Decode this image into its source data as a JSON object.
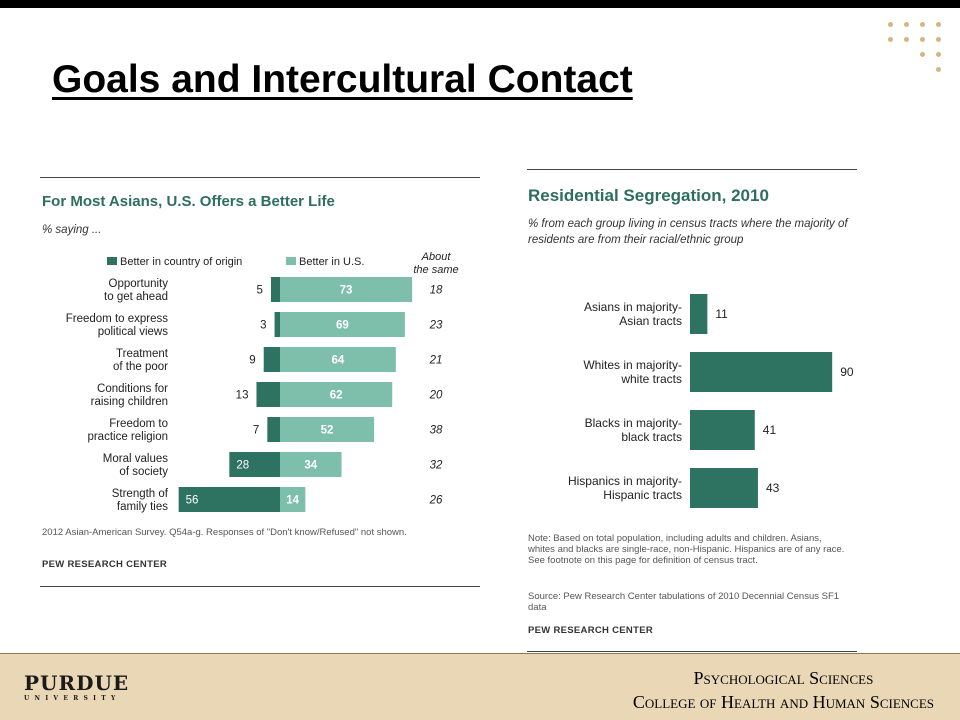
{
  "slide": {
    "title": "Goals and Intercultural Contact",
    "footer_line1": "Psychological Sciences",
    "footer_line2": "College of Health and Human Sciences",
    "logo_name": "PURDUE",
    "logo_sub": "UNIVERSITY"
  },
  "colors": {
    "dark_green": "#2e7262",
    "light_green": "#7dbfab",
    "title_green": "#2e6e5e",
    "footer_bg": "#ead7b5",
    "dots": "#d4b483"
  },
  "chart_data": [
    {
      "type": "bar",
      "title": "For Most Asians, U.S. Offers a Better Life",
      "subtitle": "% saying ...",
      "categories": [
        "Opportunity to get ahead",
        "Freedom to express political views",
        "Treatment of the poor",
        "Conditions for raising children",
        "Freedom to practice religion",
        "Moral values of society",
        "Strength of family ties"
      ],
      "series": [
        {
          "name": "Better in country of origin",
          "values": [
            5,
            3,
            9,
            13,
            7,
            28,
            56
          ]
        },
        {
          "name": "Better in U.S.",
          "values": [
            73,
            69,
            64,
            62,
            52,
            34,
            14
          ]
        }
      ],
      "about_the_same": {
        "name": "About the same",
        "values": [
          18,
          23,
          21,
          20,
          38,
          32,
          26
        ]
      },
      "note": "2012 Asian-American Survey. Q54a-g. Responses of \"Don't know/Refused\" not shown.",
      "source": "PEW RESEARCH CENTER"
    },
    {
      "type": "bar",
      "title": "Residential Segregation, 2010",
      "subtitle": "% from each group living in census tracts where the majority of residents are from their racial/ethnic group",
      "categories": [
        "Asians in majority-Asian tracts",
        "Whites in majority-white tracts",
        "Blacks in majority-black tracts",
        "Hispanics in majority-Hispanic tracts"
      ],
      "values": [
        11,
        90,
        41,
        43
      ],
      "note": "Note: Based on total population, including adults and children. Asians, whites and blacks are single-race, non-Hispanic. Hispanics are of any race. See footnote on this page for definition of census tract.",
      "source_note": "Source: Pew Research Center tabulations of 2010 Decennial Census SF1 data",
      "source": "PEW RESEARCH CENTER"
    }
  ]
}
